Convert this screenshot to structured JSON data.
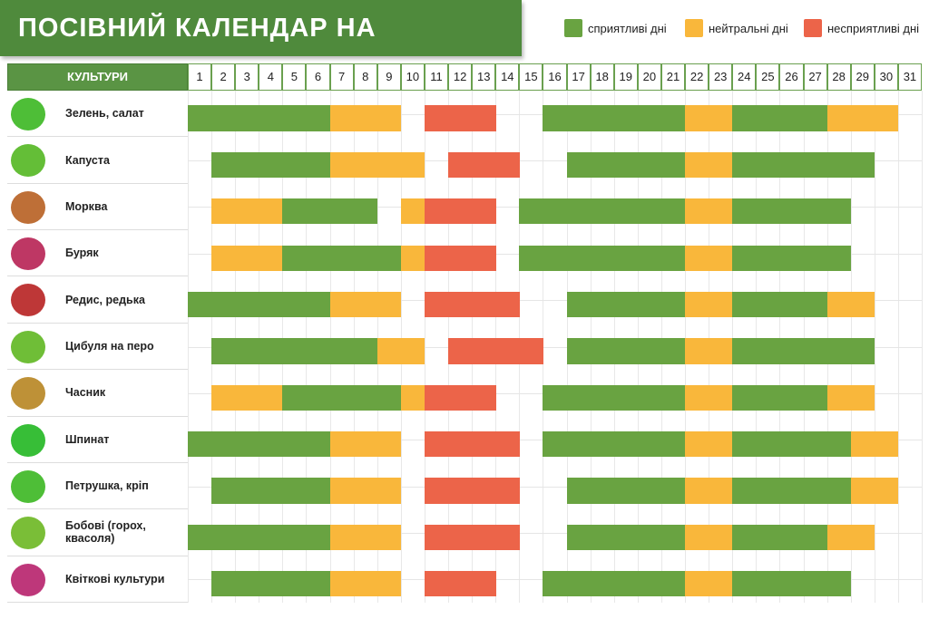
{
  "header": {
    "title": "ПОСІВНИЙ КАЛЕНДАР НА ЖОВТЕНЬ"
  },
  "legend": [
    {
      "label": "сприятливі дні",
      "color": "#69a341"
    },
    {
      "label": "нейтральні дні",
      "color": "#f9b73b"
    },
    {
      "label": "несприятливі дні",
      "color": "#ec6449"
    }
  ],
  "table": {
    "crop_header": "КУЛЬТУРИ",
    "days": [
      1,
      2,
      3,
      4,
      5,
      6,
      7,
      8,
      9,
      10,
      11,
      12,
      13,
      14,
      15,
      16,
      17,
      18,
      19,
      20,
      21,
      22,
      23,
      24,
      25,
      26,
      27,
      28,
      29,
      30,
      31
    ],
    "rows": [
      {
        "name": "Зелень, салат",
        "days": [
          0,
          0,
          0,
          0,
          0,
          0,
          1,
          1,
          1,
          null,
          2,
          2,
          2,
          null,
          null,
          0,
          0,
          0,
          0,
          0,
          0,
          1,
          1,
          0,
          0,
          0,
          0,
          1,
          1,
          1,
          null
        ]
      },
      {
        "name": "Капуста",
        "days": [
          null,
          0,
          0,
          0,
          0,
          0,
          1,
          1,
          1,
          1,
          null,
          2,
          2,
          2,
          null,
          null,
          0,
          0,
          0,
          0,
          0,
          1,
          1,
          0,
          0,
          0,
          0,
          0,
          0,
          null,
          null
        ]
      },
      {
        "name": "Морква",
        "days": [
          null,
          1,
          1,
          1,
          0,
          0,
          0,
          0,
          null,
          1,
          2,
          2,
          2,
          null,
          0,
          0,
          0,
          0,
          0,
          0,
          0,
          1,
          1,
          0,
          0,
          0,
          0,
          0,
          null,
          null,
          null
        ]
      },
      {
        "name": "Буряк",
        "days": [
          null,
          1,
          1,
          1,
          0,
          0,
          0,
          0,
          0,
          1,
          2,
          2,
          2,
          null,
          0,
          0,
          0,
          0,
          0,
          0,
          0,
          1,
          1,
          0,
          0,
          0,
          0,
          0,
          null,
          null,
          null
        ]
      },
      {
        "name": "Редис, редька",
        "days": [
          0,
          0,
          0,
          0,
          0,
          0,
          1,
          1,
          1,
          null,
          2,
          2,
          2,
          2,
          null,
          null,
          0,
          0,
          0,
          0,
          0,
          1,
          1,
          0,
          0,
          0,
          0,
          1,
          1,
          null,
          null
        ]
      },
      {
        "name": "Цибуля на перо",
        "days": [
          null,
          0,
          0,
          0,
          0,
          0,
          0,
          0,
          1,
          1,
          null,
          2,
          2,
          2,
          2,
          null,
          0,
          0,
          0,
          0,
          0,
          1,
          1,
          0,
          0,
          0,
          0,
          0,
          0,
          null,
          null
        ]
      },
      {
        "name": "Часник",
        "days": [
          null,
          1,
          1,
          1,
          0,
          0,
          0,
          0,
          0,
          1,
          2,
          2,
          2,
          null,
          null,
          0,
          0,
          0,
          0,
          0,
          0,
          1,
          1,
          0,
          0,
          0,
          0,
          1,
          1,
          null,
          null
        ]
      },
      {
        "name": "Шпинат",
        "days": [
          0,
          0,
          0,
          0,
          0,
          0,
          1,
          1,
          1,
          null,
          2,
          2,
          2,
          2,
          null,
          0,
          0,
          0,
          0,
          0,
          0,
          1,
          1,
          0,
          0,
          0,
          0,
          0,
          1,
          1,
          null
        ]
      },
      {
        "name": "Петрушка, кріп",
        "days": [
          null,
          0,
          0,
          0,
          0,
          0,
          1,
          1,
          1,
          null,
          2,
          2,
          2,
          2,
          null,
          null,
          0,
          0,
          0,
          0,
          0,
          1,
          1,
          0,
          0,
          0,
          0,
          0,
          1,
          1,
          null
        ]
      },
      {
        "name": "Бобові (горох, квасоля)",
        "days": [
          0,
          0,
          0,
          0,
          0,
          0,
          1,
          1,
          1,
          null,
          2,
          2,
          2,
          2,
          null,
          null,
          0,
          0,
          0,
          0,
          0,
          1,
          1,
          0,
          0,
          0,
          0,
          1,
          1,
          null,
          null
        ]
      },
      {
        "name": "Квіткові культури",
        "days": [
          null,
          0,
          0,
          0,
          0,
          0,
          1,
          1,
          1,
          null,
          2,
          2,
          2,
          null,
          null,
          0,
          0,
          0,
          0,
          0,
          0,
          1,
          1,
          0,
          0,
          0,
          0,
          0,
          null,
          null,
          null
        ]
      }
    ]
  }
}
